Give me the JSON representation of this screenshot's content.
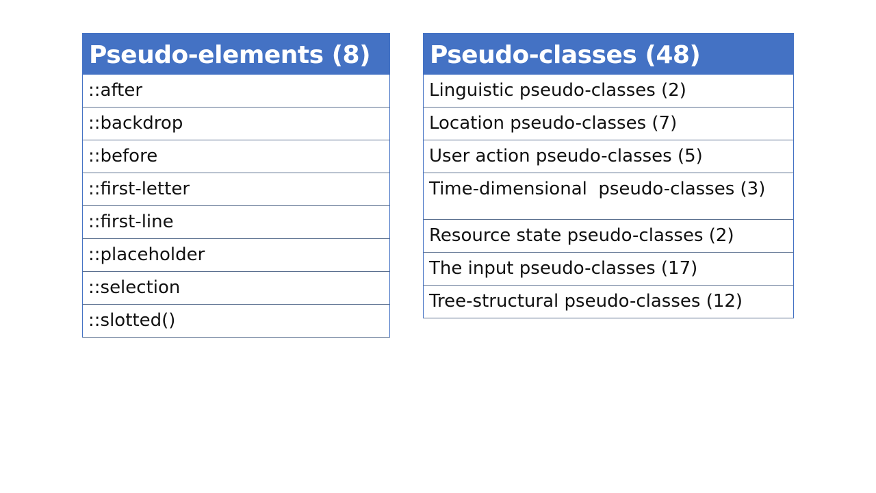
{
  "pseudo_elements": {
    "title": "Pseudo-elements (8)",
    "items": [
      "::after",
      "::backdrop",
      "::before",
      "::first-letter",
      "::first-line",
      "::placeholder",
      "::selection",
      "::slotted()"
    ]
  },
  "pseudo_classes": {
    "title": "Pseudo-classes (48)",
    "items": [
      "Linguistic pseudo-classes (2)",
      "Location pseudo-classes (7)",
      "User action pseudo-classes (5)",
      "Time-dimensional  pseudo-classes (3)",
      "Resource state pseudo-classes (2)",
      "The input pseudo-classes (17)",
      "Tree-structural pseudo-classes (12)"
    ]
  },
  "colors": {
    "header": "#4472C4"
  }
}
